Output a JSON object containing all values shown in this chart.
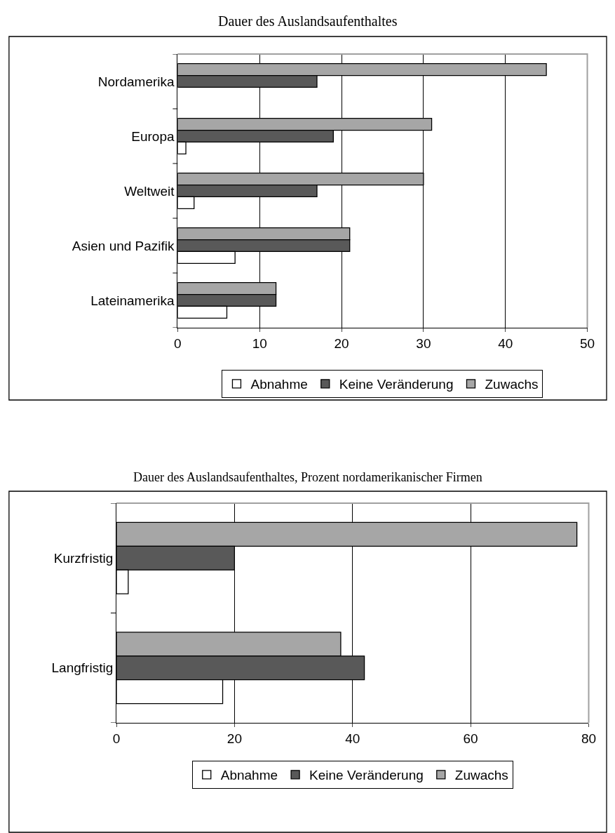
{
  "chart_data": [
    {
      "type": "bar",
      "orientation": "horizontal",
      "title": "Dauer des Auslandsaufenthaltes",
      "categories": [
        "Nordamerika",
        "Europa",
        "Weltweit",
        "Asien und Pazifik",
        "Lateinamerika"
      ],
      "series": [
        {
          "name": "Abnahme",
          "color": "#ffffff",
          "values": [
            null,
            1,
            2,
            7,
            6
          ]
        },
        {
          "name": "Keine Veränderung",
          "color": "#595959",
          "values": [
            17,
            19,
            17,
            21,
            12
          ]
        },
        {
          "name": "Zuwachs",
          "color": "#a6a6a6",
          "values": [
            45,
            31,
            30,
            21,
            12
          ]
        }
      ],
      "xlim": [
        0,
        50
      ],
      "xticks": [
        0,
        10,
        20,
        30,
        40,
        50
      ],
      "grid": "x",
      "legend": "bottom"
    },
    {
      "type": "bar",
      "orientation": "horizontal",
      "title": "Dauer des Auslandsaufenthaltes, Prozent nordamerikanischer Firmen",
      "categories": [
        "Kurzfristig",
        "Langfristig"
      ],
      "series": [
        {
          "name": "Abnahme",
          "color": "#ffffff",
          "values": [
            2,
            18
          ]
        },
        {
          "name": "Keine Veränderung",
          "color": "#595959",
          "values": [
            20,
            42
          ]
        },
        {
          "name": "Zuwachs",
          "color": "#a6a6a6",
          "values": [
            78,
            38
          ]
        }
      ],
      "xlim": [
        0,
        80
      ],
      "xticks": [
        0,
        20,
        40,
        60,
        80
      ],
      "grid": "x",
      "legend": "bottom"
    }
  ]
}
